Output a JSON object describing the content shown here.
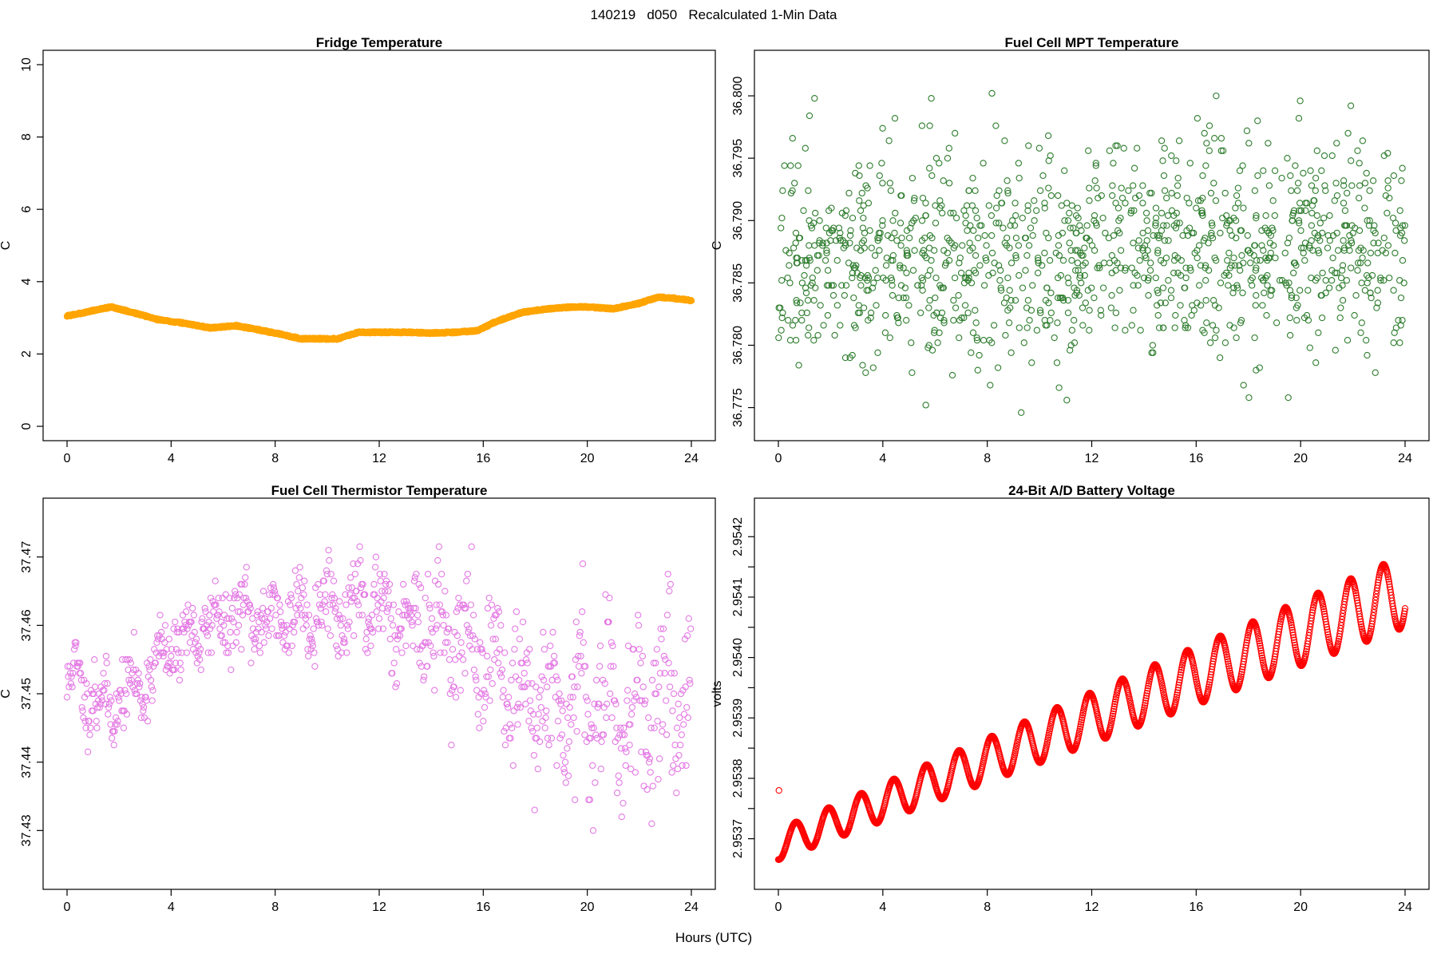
{
  "page": {
    "suptitle": "140219   d050   Recalculated 1-Min Data",
    "xlabel": "Hours (UTC)"
  },
  "chart_data": [
    {
      "id": "fridge",
      "type": "scatter",
      "title": "Fridge Temperature",
      "ylabel": "C",
      "xlim": [
        0,
        24
      ],
      "ylim": [
        0,
        10
      ],
      "xticks": [
        0,
        4,
        8,
        12,
        16,
        20,
        24
      ],
      "yticks": [
        0,
        2,
        4,
        6,
        8,
        10
      ],
      "ytick_labels": [
        "0",
        "2",
        "4",
        "6",
        "8",
        "10"
      ],
      "color": "#ffa500",
      "marker": "filled-thick",
      "points_per_hour": 60,
      "anchors_x": [
        0,
        0.5,
        1.0,
        1.7,
        2.5,
        3.5,
        4.5,
        5.5,
        6.5,
        7.5,
        8.5,
        9.0,
        10.4,
        11.2,
        12.0,
        13.0,
        14.0,
        15.0,
        15.8,
        16.5,
        17.5,
        18.5,
        19.5,
        20.0,
        21.0,
        22.0,
        22.7,
        23.2,
        24.0
      ],
      "anchors_y": [
        3.05,
        3.12,
        3.2,
        3.3,
        3.15,
        2.95,
        2.85,
        2.72,
        2.78,
        2.65,
        2.5,
        2.42,
        2.42,
        2.6,
        2.6,
        2.6,
        2.58,
        2.6,
        2.65,
        2.9,
        3.15,
        3.25,
        3.3,
        3.3,
        3.25,
        3.4,
        3.57,
        3.55,
        3.48
      ]
    },
    {
      "id": "mpt",
      "type": "scatter",
      "title": "Fuel Cell MPT Temperature",
      "ylabel": "C",
      "xlim": [
        0,
        24
      ],
      "ylim": [
        36.7735,
        36.8025
      ],
      "xticks": [
        0,
        4,
        8,
        12,
        16,
        20,
        24
      ],
      "yticks": [
        36.775,
        36.78,
        36.785,
        36.79,
        36.795,
        36.8
      ],
      "ytick_labels": [
        "36.775",
        "36.780",
        "36.785",
        "36.790",
        "36.795",
        "36.800"
      ],
      "color": "#2e7d2e",
      "marker": "open-circle",
      "points_per_hour": 50,
      "mean": 36.7875,
      "spread": 0.0042,
      "trend_per_hour": 8e-05,
      "seed": 7
    },
    {
      "id": "thermistor",
      "type": "scatter",
      "title": "Fuel Cell Thermistor Temperature",
      "ylabel": "C",
      "xlim": [
        0,
        24
      ],
      "ylim": [
        37.4235,
        37.4765
      ],
      "xticks": [
        0,
        4,
        8,
        12,
        16,
        20,
        24
      ],
      "yticks": [
        37.43,
        37.44,
        37.45,
        37.46,
        37.47
      ],
      "ytick_labels": [
        "37.43",
        "37.44",
        "37.45",
        "37.46",
        "37.47"
      ],
      "color": "#e47ae4",
      "marker": "open-circle",
      "points_per_hour": 40,
      "cycle_hours": 1.08,
      "mid_x": [
        0,
        1.5,
        3,
        4,
        6,
        8,
        10,
        12,
        14,
        16,
        18,
        20,
        22,
        24
      ],
      "mid_y": [
        37.453,
        37.448,
        37.452,
        37.457,
        37.461,
        37.461,
        37.463,
        37.462,
        37.46,
        37.456,
        37.448,
        37.449,
        37.447,
        37.451
      ],
      "amp_x": [
        0,
        4,
        12,
        16,
        20,
        24
      ],
      "amp_y": [
        0.007,
        0.006,
        0.009,
        0.012,
        0.016,
        0.016
      ],
      "seed": 11
    },
    {
      "id": "battery",
      "type": "scatter",
      "title": "24-Bit A/D Battery Voltage",
      "ylabel": "volts",
      "xlim": [
        0,
        24
      ],
      "ylim": [
        2.95364,
        2.95424
      ],
      "xticks": [
        0,
        4,
        8,
        12,
        16,
        20,
        24
      ],
      "yticks": [
        2.9537,
        2.95375,
        2.9538,
        2.95385,
        2.9539,
        2.95395,
        2.954,
        2.95405,
        2.9541,
        2.95415,
        2.9542
      ],
      "ytick_labels": [
        "2.9537",
        "",
        "2.9538",
        "",
        "2.9539",
        "",
        "2.9540",
        "",
        "2.9541",
        "",
        "2.9542"
      ],
      "color": "#ff0000",
      "marker": "open-circle",
      "points_per_hour": 60,
      "start": 2.95369,
      "end": 2.95411,
      "cycle_hours": 1.25,
      "amp_start": 2.5e-05,
      "amp_end": 6e-05,
      "outlier_x": 0.02,
      "outlier_y": 2.95378
    }
  ]
}
